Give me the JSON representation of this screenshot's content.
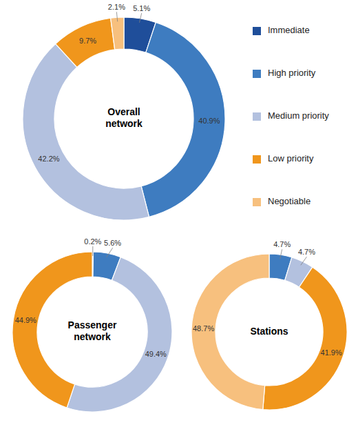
{
  "chart_data": [
    {
      "type": "donut",
      "title": "Overall network",
      "categories": [
        "Immediate",
        "High priority",
        "Medium priority",
        "Low priority",
        "Negotiable"
      ],
      "values": [
        5.1,
        40.9,
        42.2,
        9.7,
        2.1
      ],
      "value_labels": [
        "5.1%",
        "40.9%",
        "42.2%",
        "9.7%",
        "2.1%"
      ],
      "colors": [
        "#1f4e9a",
        "#3e7cc0",
        "#b3c1df",
        "#f0961c",
        "#f7c07e"
      ],
      "data_labels": true,
      "legend": "right"
    },
    {
      "type": "donut",
      "title": "Passenger network",
      "categories": [
        "Immediate",
        "High priority",
        "Medium priority",
        "Low priority"
      ],
      "values": [
        0.2,
        5.6,
        49.4,
        44.9
      ],
      "value_labels": [
        "0.2%",
        "5.6%",
        "49.4%",
        "44.9%"
      ],
      "colors": [
        "#1f4e9a",
        "#3e7cc0",
        "#b3c1df",
        "#f0961c"
      ],
      "data_labels": true
    },
    {
      "type": "donut",
      "title": "Stations",
      "categories": [
        "High priority",
        "Medium priority",
        "Low priority",
        "Negotiable"
      ],
      "values": [
        4.7,
        4.7,
        41.9,
        48.7
      ],
      "value_labels": [
        "4.7%",
        "4.7%",
        "41.9%",
        "48.7%"
      ],
      "colors": [
        "#3e7cc0",
        "#b3c1df",
        "#f0961c",
        "#f7c07e"
      ],
      "data_labels": true
    }
  ]
}
